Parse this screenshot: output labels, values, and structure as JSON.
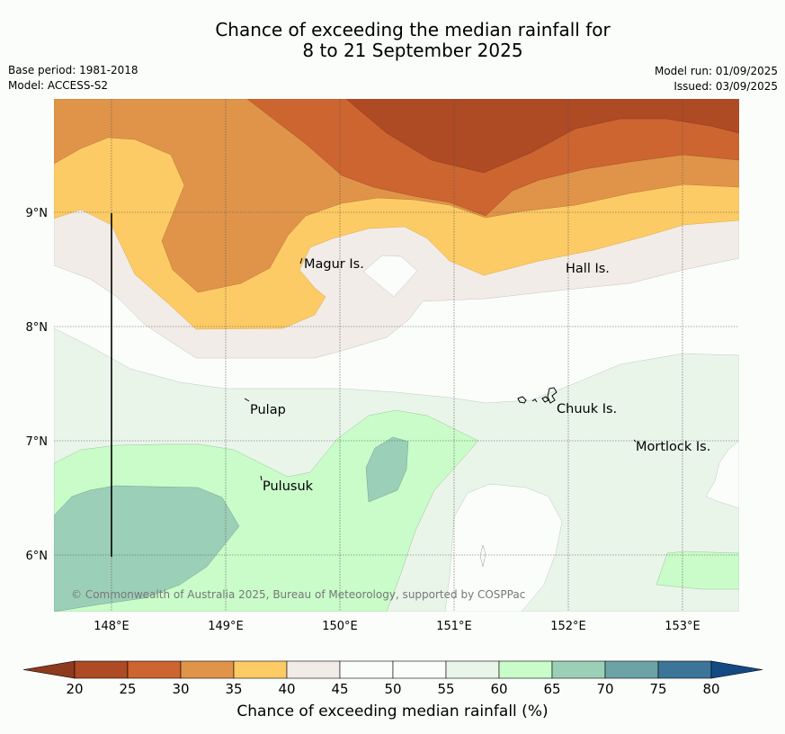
{
  "title": {
    "line1": "Chance of exceeding the median rainfall for",
    "line2": "8 to 21 September 2025"
  },
  "meta_left": {
    "base_period": "Base period: 1981-2018",
    "model": "Model: ACCESS-S2"
  },
  "meta_right": {
    "model_run": "Model run: 01/09/2025",
    "issued": "Issued: 03/09/2025"
  },
  "map": {
    "lat_ticks": [
      "9°N",
      "8°N",
      "7°N",
      "6°N"
    ],
    "lon_ticks": [
      "148°E",
      "149°E",
      "150°E",
      "151°E",
      "152°E",
      "153°E"
    ],
    "places": [
      "Magur Is.",
      "Hall Is.",
      "Pulap",
      "Chuuk Is.",
      "Mortlock Is.",
      "Pulusuk"
    ],
    "credit": "© Commonwealth of Australia 2025, Bureau of Meteorology, supported by COSPPac"
  },
  "colorbar": {
    "ticks": [
      "20",
      "25",
      "30",
      "35",
      "40",
      "45",
      "50",
      "55",
      "60",
      "65",
      "70",
      "75",
      "80"
    ],
    "colors": [
      "#ae4a24",
      "#cc6530",
      "#e0944a",
      "#fdcb65",
      "#f1ece7",
      "#fbfdfb",
      "#fbfdfb",
      "#eaf5ea",
      "#c9fcc9",
      "#9ccfb8",
      "#6ca3a6",
      "#3c7597"
    ],
    "under_color": "#8e3a1e",
    "over_color": "#144a84",
    "label": "Chance of exceeding median rainfall (%)"
  },
  "chart_data": {
    "type": "heatmap",
    "xlim": [
      147.5,
      153.5
    ],
    "ylim": [
      5.5,
      10
    ],
    "category_bounds": [
      20,
      25,
      30,
      35,
      40,
      45,
      50,
      55,
      60,
      65,
      70,
      75,
      80
    ],
    "units": "%",
    "grid": true
  }
}
